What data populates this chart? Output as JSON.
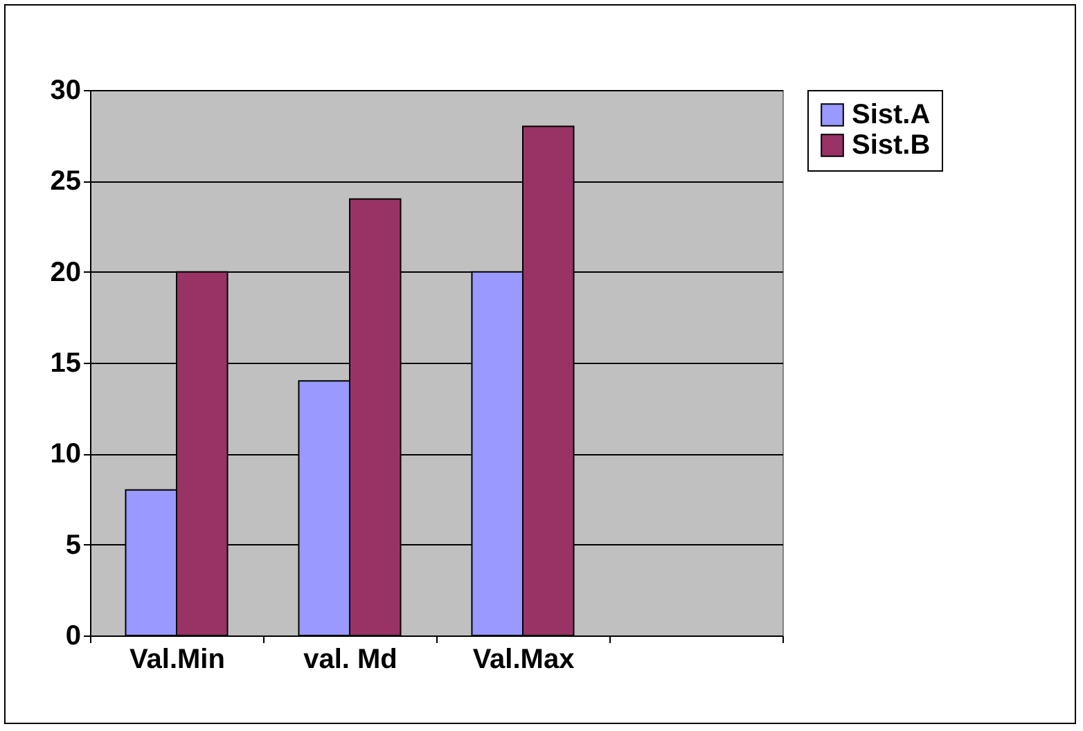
{
  "chart_data": {
    "type": "bar",
    "categories": [
      "Val.Min",
      "val. Md",
      "Val.Max",
      null
    ],
    "series": [
      {
        "name": "Sist.A",
        "color": "#9999ff",
        "values": [
          8,
          14,
          20,
          null
        ]
      },
      {
        "name": "Sist.B",
        "color": "#993366",
        "values": [
          20,
          24,
          28,
          null
        ]
      }
    ],
    "ylim": [
      0,
      30
    ],
    "yticks": [
      0,
      5,
      10,
      15,
      20,
      25,
      30
    ],
    "grid": "y",
    "legend": "right"
  }
}
